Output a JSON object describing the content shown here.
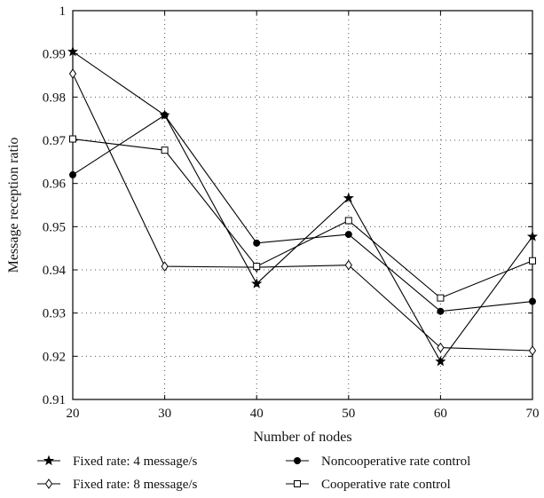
{
  "chart_data": {
    "type": "line",
    "title": "",
    "xlabel": "Number of nodes",
    "ylabel": "Message reception ratio",
    "x": [
      20,
      30,
      40,
      50,
      60,
      70
    ],
    "xlim": [
      20,
      70
    ],
    "ylim": [
      0.91,
      1.0
    ],
    "xticks": [
      "20",
      "30",
      "40",
      "50",
      "60",
      "70"
    ],
    "yticks": [
      "0.91",
      "0.92",
      "0.93",
      "0.94",
      "0.95",
      "0.96",
      "0.97",
      "0.98",
      "0.99",
      "1"
    ],
    "grid": true,
    "legend_position": "bottom",
    "series": [
      {
        "name": "Fixed rate: 4 message/s",
        "marker": "star",
        "values": [
          0.9905,
          0.9758,
          0.9368,
          0.9566,
          0.9188,
          0.9477
        ]
      },
      {
        "name": "Noncooperative rate control",
        "marker": "filled-circle",
        "values": [
          0.962,
          0.9758,
          0.9462,
          0.9482,
          0.9304,
          0.9327
        ]
      },
      {
        "name": "Fixed rate: 8 message/s",
        "marker": "open-diamond",
        "values": [
          0.9854,
          0.9408,
          0.9406,
          0.9411,
          0.922,
          0.9213
        ]
      },
      {
        "name": "Cooperative rate control",
        "marker": "open-square",
        "values": [
          0.9703,
          0.9677,
          0.9408,
          0.9514,
          0.9335,
          0.9421
        ]
      }
    ]
  }
}
